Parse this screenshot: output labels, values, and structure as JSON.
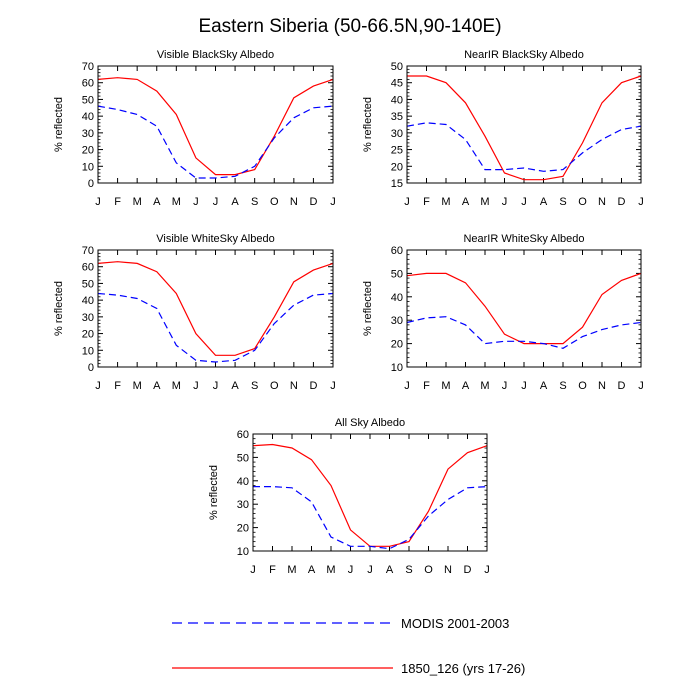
{
  "figure_title": "Eastern Siberia (50-66.5N,90-140E)",
  "legend": [
    {
      "label": "MODIS 2001-2003",
      "color": "#0000ff",
      "dash": true
    },
    {
      "label": "1850_126 (yrs 17-26)",
      "color": "#ff0000",
      "dash": false
    }
  ],
  "chart_data": [
    {
      "type": "line",
      "title": "Visible BlackSky Albedo",
      "ylabel": "% reflected",
      "x": [
        "J",
        "F",
        "M",
        "A",
        "M",
        "J",
        "J",
        "A",
        "S",
        "O",
        "N",
        "D",
        "J"
      ],
      "ylim": [
        0,
        70
      ],
      "yticks": [
        0,
        10,
        20,
        30,
        40,
        50,
        60,
        70
      ],
      "series": [
        {
          "name": "1850_126 (yrs 17-26)",
          "values": [
            62,
            63,
            62,
            55,
            41,
            15,
            5,
            5,
            8,
            28,
            51,
            58,
            62
          ]
        },
        {
          "name": "MODIS 2001-2003",
          "values": [
            46,
            44,
            41,
            34,
            12,
            3,
            3,
            4,
            10,
            27,
            39,
            45,
            46
          ]
        }
      ]
    },
    {
      "type": "line",
      "title": "NearIR BlackSky Albedo",
      "ylabel": "% reflected",
      "x": [
        "J",
        "F",
        "M",
        "A",
        "M",
        "J",
        "J",
        "A",
        "S",
        "O",
        "N",
        "D",
        "J"
      ],
      "ylim": [
        15,
        50
      ],
      "yticks": [
        15,
        20,
        25,
        30,
        35,
        40,
        45,
        50
      ],
      "series": [
        {
          "name": "1850_126 (yrs 17-26)",
          "values": [
            47,
            47,
            45,
            39,
            29,
            18,
            16,
            16,
            17,
            27,
            39,
            45,
            47
          ]
        },
        {
          "name": "MODIS 2001-2003",
          "values": [
            32,
            33,
            32.5,
            28,
            19,
            19,
            19.5,
            18.5,
            19,
            24,
            28,
            31,
            32
          ]
        }
      ]
    },
    {
      "type": "line",
      "title": "Visible WhiteSky Albedo",
      "ylabel": "% reflected",
      "x": [
        "J",
        "F",
        "M",
        "A",
        "M",
        "J",
        "J",
        "A",
        "S",
        "O",
        "N",
        "D",
        "J"
      ],
      "ylim": [
        0,
        70
      ],
      "yticks": [
        0,
        10,
        20,
        30,
        40,
        50,
        60,
        70
      ],
      "series": [
        {
          "name": "1850_126 (yrs 17-26)",
          "values": [
            62,
            63,
            62,
            57,
            44,
            20,
            7,
            7,
            11,
            30,
            51,
            58,
            62
          ]
        },
        {
          "name": "MODIS 2001-2003",
          "values": [
            44,
            43,
            41,
            35,
            13,
            4,
            3,
            4,
            10,
            26,
            37,
            43,
            44
          ]
        }
      ]
    },
    {
      "type": "line",
      "title": "NearIR WhiteSky Albedo",
      "ylabel": "% reflected",
      "x": [
        "J",
        "F",
        "M",
        "A",
        "M",
        "J",
        "J",
        "A",
        "S",
        "O",
        "N",
        "D",
        "J"
      ],
      "ylim": [
        10,
        60
      ],
      "yticks": [
        10,
        20,
        30,
        40,
        50,
        60
      ],
      "series": [
        {
          "name": "1850_126 (yrs 17-26)",
          "values": [
            49,
            50,
            50,
            46,
            36,
            24,
            20,
            20,
            20,
            27,
            41,
            47,
            50
          ]
        },
        {
          "name": "MODIS 2001-2003",
          "values": [
            29,
            31,
            31.5,
            28,
            20,
            21,
            21,
            20,
            18,
            23,
            26,
            28,
            29
          ]
        }
      ]
    },
    {
      "type": "line",
      "title": "All Sky Albedo",
      "ylabel": "% reflected",
      "x": [
        "J",
        "F",
        "M",
        "A",
        "M",
        "J",
        "J",
        "A",
        "S",
        "O",
        "N",
        "D",
        "J"
      ],
      "ylim": [
        10,
        60
      ],
      "yticks": [
        10,
        20,
        30,
        40,
        50,
        60
      ],
      "series": [
        {
          "name": "1850_126 (yrs 17-26)",
          "values": [
            55,
            55.5,
            54,
            49,
            38,
            19,
            12,
            12,
            14,
            27,
            45,
            52,
            55
          ]
        },
        {
          "name": "MODIS 2001-2003",
          "values": [
            37.5,
            37.5,
            37,
            31,
            16,
            12,
            12,
            11,
            15,
            25,
            32,
            37,
            37.5
          ]
        }
      ]
    }
  ]
}
